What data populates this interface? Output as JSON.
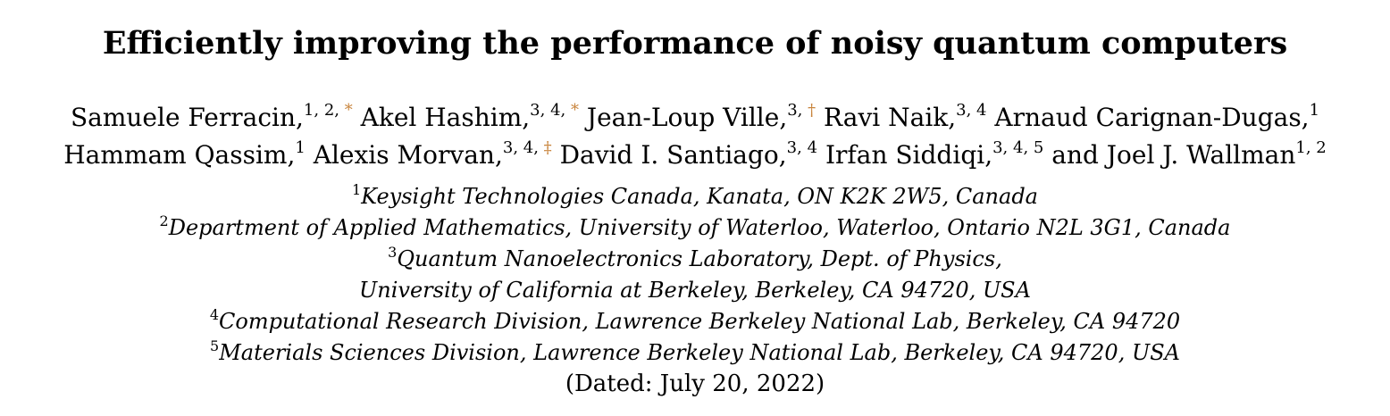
{
  "paper": {
    "title": "Efficiently improving the performance of noisy quantum computers",
    "authors": [
      {
        "name": "Samuele Ferracin,",
        "affil": "1, 2, ",
        "mark": "*"
      },
      {
        "name": "Akel Hashim,",
        "affil": "3, 4, ",
        "mark": "*"
      },
      {
        "name": "Jean-Loup Ville,",
        "affil": "3, ",
        "mark": "†"
      },
      {
        "name": "Ravi Naik,",
        "affil": "3, 4",
        "mark": ""
      },
      {
        "name": "Arnaud Carignan-Dugas,",
        "affil": "1",
        "mark": ""
      },
      {
        "name": "Hammam Qassim,",
        "affil": "1",
        "mark": ""
      },
      {
        "name": "Alexis Morvan,",
        "affil": "3, 4, ",
        "mark": "‡"
      },
      {
        "name": "David I. Santiago,",
        "affil": "3, 4",
        "mark": ""
      },
      {
        "name": "Irfan Siddiqi,",
        "affil": "3, 4, 5",
        "mark": ""
      },
      {
        "name": "and Joel J. Wallman",
        "affil": "1, 2",
        "mark": ""
      }
    ],
    "affiliations": [
      {
        "num": "1",
        "text": "Keysight Technologies Canada, Kanata, ON K2K 2W5, Canada"
      },
      {
        "num": "2",
        "text": "Department of Applied Mathematics, University of Waterloo, Waterloo, Ontario N2L 3G1, Canada"
      },
      {
        "num": "3",
        "text": "Quantum Nanoelectronics Laboratory, Dept.  of Physics,"
      },
      {
        "num": "",
        "text": "University of California at Berkeley, Berkeley, CA 94720, USA"
      },
      {
        "num": "4",
        "text": "Computational Research Division, Lawrence Berkeley National Lab, Berkeley, CA 94720"
      },
      {
        "num": "5",
        "text": "Materials Sciences Division, Lawrence Berkeley National Lab, Berkeley, CA 94720, USA"
      }
    ],
    "dated": "(Dated: July 20, 2022)"
  }
}
